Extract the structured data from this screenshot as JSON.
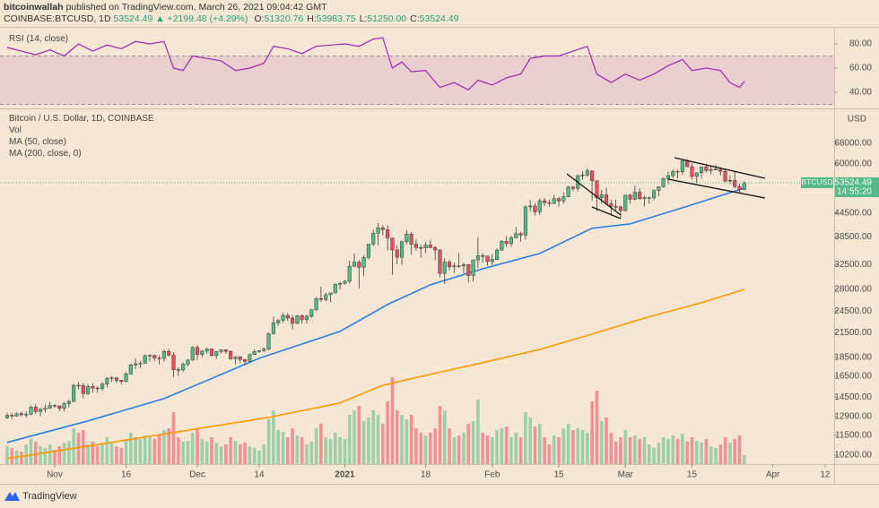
{
  "header": {
    "publisher": "bitcoinwallah",
    "published": "published on TradingView.com, March 26, 2021 09:04:42 GMT",
    "symbol": "COINBASE:BTCUSD, 1D",
    "last": "53524.49",
    "change": "▲ +2199.48 (+4.29%)",
    "ohlc": [
      {
        "label": "O:",
        "value": "51320.76"
      },
      {
        "label": "H:",
        "value": "53983.75"
      },
      {
        "label": "L:",
        "value": "51250.00"
      },
      {
        "label": "C:",
        "value": "53524.49"
      }
    ]
  },
  "chart_data": [
    {
      "type": "line",
      "title": "RSI (14, close)",
      "xlim": [
        -1.5,
        173.9
      ],
      "ylim": [
        27.4,
        91.1
      ],
      "yticks": [
        {
          "value": 80,
          "label": "80.00"
        },
        {
          "value": 60,
          "label": "60.00"
        },
        {
          "value": 40,
          "label": "40.00"
        }
      ],
      "band": [
        30,
        70
      ],
      "band_color": "#9c27b0",
      "series": [
        {
          "color": "#9c27b0",
          "x": [
            0,
            3,
            6,
            9,
            12,
            15,
            18,
            21,
            24,
            27,
            30,
            33,
            35,
            37,
            39,
            42,
            45,
            48,
            51,
            54,
            56,
            59,
            62,
            65,
            68,
            71,
            74,
            77,
            79,
            81,
            83,
            85,
            88,
            91,
            94,
            97,
            99,
            102,
            105,
            108,
            110,
            113,
            116,
            119,
            122,
            124,
            127,
            130,
            133,
            136,
            139,
            142,
            144,
            147,
            150,
            152,
            154,
            155
          ],
          "values": [
            77,
            74,
            71,
            75,
            70,
            80,
            74,
            79,
            76,
            82,
            80,
            82,
            60,
            58,
            70,
            68,
            66,
            58,
            60,
            64,
            78,
            76,
            72,
            78,
            79,
            80,
            78,
            84,
            85,
            60,
            65,
            57,
            58,
            44,
            48,
            42,
            50,
            46,
            52,
            55,
            68,
            70,
            70,
            74,
            78,
            55,
            48,
            55,
            50,
            55,
            62,
            67,
            58,
            60,
            58,
            48,
            44,
            49
          ]
        }
      ]
    },
    {
      "type": "candlestick",
      "title": "Bitcoin / U.S. Dollar, 1D, COINBASE",
      "volume_label": "Vol",
      "y_unit": "USD",
      "log_scale": true,
      "xlim": [
        -1.5,
        173.9
      ],
      "ylim": [
        9650,
        83700
      ],
      "up_color": "#53b987",
      "down_color": "#eb4d5c",
      "yticks": [
        {
          "value": 68000,
          "label": "68000.00"
        },
        {
          "value": 60000,
          "label": "60000.00"
        },
        {
          "value": 44500,
          "label": "44500.00"
        },
        {
          "value": 38500,
          "label": "38500.00"
        },
        {
          "value": 32500,
          "label": "32500.00"
        },
        {
          "value": 28000,
          "label": "28000.00"
        },
        {
          "value": 24500,
          "label": "24500.00"
        },
        {
          "value": 21500,
          "label": "21500.00"
        },
        {
          "value": 18500,
          "label": "18500.00"
        },
        {
          "value": 16500,
          "label": "16500.00"
        },
        {
          "value": 14500,
          "label": "14500.00"
        },
        {
          "value": 12900,
          "label": "12900.00"
        },
        {
          "value": 11500,
          "label": "11500.00"
        },
        {
          "value": 10200,
          "label": "10200.00"
        }
      ],
      "xticks": [
        {
          "value": 10,
          "label": "Nov"
        },
        {
          "value": 25,
          "label": "16"
        },
        {
          "value": 40,
          "label": "Dec"
        },
        {
          "value": 53,
          "label": "14"
        },
        {
          "value": 71,
          "label": "2021",
          "bold": true
        },
        {
          "value": 88,
          "label": "18"
        },
        {
          "value": 102,
          "label": "Feb"
        },
        {
          "value": 116,
          "label": "15"
        },
        {
          "value": 130,
          "label": "Mar"
        },
        {
          "value": 144,
          "label": "15"
        },
        {
          "value": 161,
          "label": "Apr"
        },
        {
          "value": 172,
          "label": "12"
        }
      ],
      "open": [
        12800,
        12990,
        12930,
        13120,
        13030,
        13070,
        13650,
        13280,
        13460,
        13560,
        13800,
        13760,
        13550,
        13950,
        14130,
        15590,
        15580,
        14830,
        15480,
        15330,
        15300,
        15700,
        16280,
        16320,
        16070,
        15960,
        16730,
        17650,
        17780,
        17820,
        18680,
        18710,
        18420,
        18370,
        19160,
        18720,
        17150,
        17140,
        17720,
        18180,
        19630,
        18800,
        19200,
        19450,
        18700,
        19150,
        19360,
        19170,
        18320,
        18550,
        18250,
        18040,
        18800,
        19140,
        19250,
        19440,
        21350,
        22800,
        23140,
        23870,
        23480,
        22740,
        23820,
        23240,
        23730,
        24710,
        26440,
        26280,
        27080,
        27360,
        28840,
        29000,
        29370,
        32190,
        33000,
        31990,
        33990,
        36820,
        39370,
        40670,
        40240,
        38240,
        35540,
        34010,
        37390,
        39160,
        36830,
        36070,
        35990,
        36630,
        36070,
        35550,
        30820,
        33010,
        32080,
        32260,
        32250,
        32510,
        30430,
        33460,
        34320,
        34270,
        33110,
        33520,
        35510,
        37470,
        36930,
        38290,
        39260,
        38900,
        46200,
        46480,
        44840,
        47970,
        47410,
        47180,
        48580,
        47930,
        49150,
        52150,
        51680,
        55890,
        56100,
        57540,
        54200,
        48820,
        49710,
        47090,
        46340,
        46190,
        45140,
        49630,
        48380,
        50540,
        48560,
        48880,
        48880,
        51020,
        52220,
        54940,
        55890,
        57330,
        57230,
        61190,
        59010,
        55630,
        56900,
        58910,
        57650,
        58030,
        58100,
        57350,
        54080,
        54340,
        52300,
        51320.76
      ],
      "high": [
        13200,
        13200,
        13200,
        13300,
        13300,
        13800,
        13900,
        13600,
        13900,
        14100,
        13900,
        13800,
        14100,
        14300,
        15700,
        15900,
        15800,
        15700,
        15800,
        15500,
        15900,
        16400,
        16500,
        16400,
        16100,
        16900,
        17800,
        18400,
        18100,
        18800,
        18800,
        18800,
        18700,
        19400,
        19500,
        19100,
        17400,
        17900,
        18300,
        19800,
        19900,
        19300,
        19600,
        19500,
        19200,
        19400,
        19400,
        19300,
        18600,
        18600,
        18300,
        18900,
        19400,
        19300,
        19600,
        21500,
        23700,
        23300,
        24200,
        24200,
        24000,
        23900,
        24000,
        24000,
        24800,
        26700,
        28400,
        27400,
        27400,
        29000,
        29300,
        29600,
        33300,
        34800,
        33400,
        34400,
        36900,
        40200,
        41900,
        41300,
        41300,
        38300,
        36600,
        37600,
        40100,
        39700,
        37900,
        36800,
        37300,
        37800,
        36400,
        35600,
        33800,
        33500,
        32900,
        34900,
        32900,
        32600,
        33500,
        38500,
        34900,
        34300,
        34700,
        35900,
        37700,
        38700,
        38700,
        40900,
        39700,
        46700,
        48200,
        47300,
        48600,
        48800,
        48200,
        49700,
        49100,
        50500,
        52500,
        52500,
        56300,
        57500,
        58300,
        57500,
        54200,
        51300,
        52000,
        48300,
        48300,
        46600,
        49800,
        50100,
        52600,
        51800,
        49400,
        49200,
        51400,
        52400,
        55200,
        57300,
        58000,
        58000,
        61700,
        61800,
        60300,
        57000,
        59000,
        60000,
        59400,
        59800,
        58600,
        58400,
        55800,
        57200,
        53200,
        53983.75
      ],
      "low": [
        12700,
        12700,
        12900,
        12900,
        12800,
        13000,
        13100,
        12900,
        13200,
        13500,
        13600,
        13300,
        13300,
        13600,
        14100,
        15200,
        14400,
        14700,
        14900,
        14900,
        15100,
        15400,
        15900,
        15800,
        15700,
        15900,
        16600,
        17200,
        17300,
        17800,
        18000,
        18100,
        17700,
        18000,
        18600,
        16400,
        16500,
        16900,
        17500,
        18100,
        18200,
        18500,
        18900,
        18600,
        18300,
        18900,
        18900,
        18200,
        17700,
        17900,
        17600,
        18000,
        18800,
        19000,
        19100,
        19300,
        21300,
        22400,
        22800,
        23100,
        21900,
        22600,
        22700,
        22700,
        23500,
        24500,
        25900,
        26000,
        25900,
        27300,
        27900,
        28800,
        29000,
        32000,
        28100,
        30300,
        33500,
        36400,
        36600,
        38800,
        35500,
        30500,
        32600,
        32500,
        36800,
        34500,
        35400,
        33900,
        34800,
        35900,
        33400,
        30100,
        28900,
        31400,
        30900,
        31900,
        30800,
        29200,
        29300,
        31900,
        32900,
        32300,
        32400,
        33400,
        35400,
        36200,
        36200,
        38200,
        37400,
        37900,
        45000,
        43800,
        44000,
        46400,
        46300,
        47100,
        46300,
        47200,
        48900,
        50900,
        50800,
        54600,
        55500,
        48000,
        45000,
        47100,
        46900,
        44200,
        45200,
        43100,
        45000,
        47100,
        48100,
        48200,
        46300,
        47100,
        48100,
        49300,
        51900,
        53000,
        55000,
        54900,
        56200,
        58900,
        54600,
        53400,
        54900,
        56900,
        56300,
        57800,
        55900,
        53700,
        53000,
        51700,
        50400,
        51250
      ],
      "close": [
        12990,
        12930,
        13120,
        13030,
        13070,
        13650,
        13280,
        13460,
        13560,
        13800,
        13760,
        13550,
        13950,
        14130,
        15590,
        15580,
        14830,
        15480,
        15330,
        15300,
        15700,
        16280,
        16320,
        16070,
        15960,
        16730,
        17650,
        17780,
        17820,
        18680,
        18710,
        18420,
        18370,
        19160,
        18720,
        17150,
        17140,
        17720,
        18180,
        19630,
        18800,
        19200,
        19450,
        18700,
        19150,
        19360,
        19170,
        18320,
        18550,
        18250,
        18040,
        18800,
        19140,
        19250,
        19440,
        21350,
        22800,
        23140,
        23870,
        23480,
        22740,
        23820,
        23240,
        23730,
        24710,
        26440,
        26280,
        27080,
        27360,
        28840,
        29000,
        29370,
        32190,
        33000,
        31990,
        33990,
        36820,
        39370,
        40670,
        40240,
        38240,
        35540,
        34010,
        37390,
        39160,
        36830,
        36070,
        35990,
        36630,
        36070,
        35550,
        30820,
        33010,
        32080,
        32260,
        32250,
        32510,
        30430,
        33460,
        34320,
        34270,
        33110,
        33520,
        35510,
        37470,
        36930,
        38290,
        39260,
        38900,
        46200,
        46480,
        44840,
        47970,
        47410,
        47180,
        48580,
        47930,
        49150,
        52150,
        51680,
        55890,
        56100,
        57540,
        54200,
        48820,
        49710,
        47090,
        46340,
        46190,
        45140,
        49630,
        48380,
        50540,
        48560,
        48880,
        48880,
        51020,
        52220,
        54940,
        55890,
        57330,
        57230,
        61190,
        59010,
        55630,
        56900,
        58910,
        57650,
        58030,
        58100,
        57350,
        54080,
        54340,
        52300,
        51300,
        53524.49
      ],
      "volume": [
        20,
        18,
        15,
        14,
        22,
        28,
        25,
        20,
        18,
        22,
        16,
        20,
        24,
        26,
        40,
        35,
        38,
        22,
        25,
        20,
        22,
        30,
        24,
        20,
        18,
        28,
        35,
        30,
        28,
        32,
        30,
        28,
        32,
        38,
        40,
        58,
        30,
        25,
        26,
        35,
        40,
        28,
        25,
        30,
        24,
        20,
        22,
        30,
        26,
        22,
        24,
        20,
        18,
        15,
        22,
        50,
        60,
        38,
        36,
        30,
        40,
        32,
        30,
        22,
        25,
        40,
        45,
        30,
        28,
        35,
        30,
        28,
        55,
        60,
        65,
        48,
        52,
        60,
        55,
        45,
        70,
        97,
        60,
        55,
        50,
        55,
        40,
        35,
        32,
        35,
        40,
        65,
        60,
        40,
        30,
        32,
        35,
        45,
        48,
        72,
        35,
        32,
        30,
        38,
        40,
        42,
        30,
        35,
        30,
        58,
        52,
        42,
        45,
        30,
        22,
        32,
        30,
        40,
        45,
        38,
        40,
        38,
        35,
        70,
        82,
        48,
        52,
        35,
        25,
        30,
        38,
        30,
        32,
        28,
        30,
        22,
        18,
        24,
        30,
        28,
        32,
        28,
        34,
        25,
        30,
        26,
        24,
        28,
        20,
        18,
        22,
        30,
        24,
        28,
        32,
        10
      ],
      "series": [
        {
          "name": "MA (50, close)",
          "color": "#2a7ee0",
          "x": [
            0,
            17,
            33,
            53,
            70,
            80,
            89,
            100,
            112,
            123,
            131,
            142,
            155
          ],
          "values": [
            11010,
            12550,
            14380,
            18380,
            21650,
            25500,
            28750,
            31700,
            34800,
            40550,
            41650,
            45950,
            51800
          ]
        },
        {
          "name": "MA (200, close, 0)",
          "color": "#ff9800",
          "x": [
            0,
            17,
            36,
            55,
            70,
            79,
            89,
            100,
            112,
            123,
            134,
            146,
            155
          ],
          "values": [
            9980,
            10770,
            11750,
            12820,
            14000,
            15600,
            16670,
            17890,
            19400,
            21300,
            23480,
            25780,
            27960
          ]
        }
      ],
      "last_price": {
        "symbol": "BTCUSD",
        "value": 53524.49,
        "countdown": "14:55:20"
      }
    }
  ],
  "footer": {
    "brand": "TradingView"
  }
}
